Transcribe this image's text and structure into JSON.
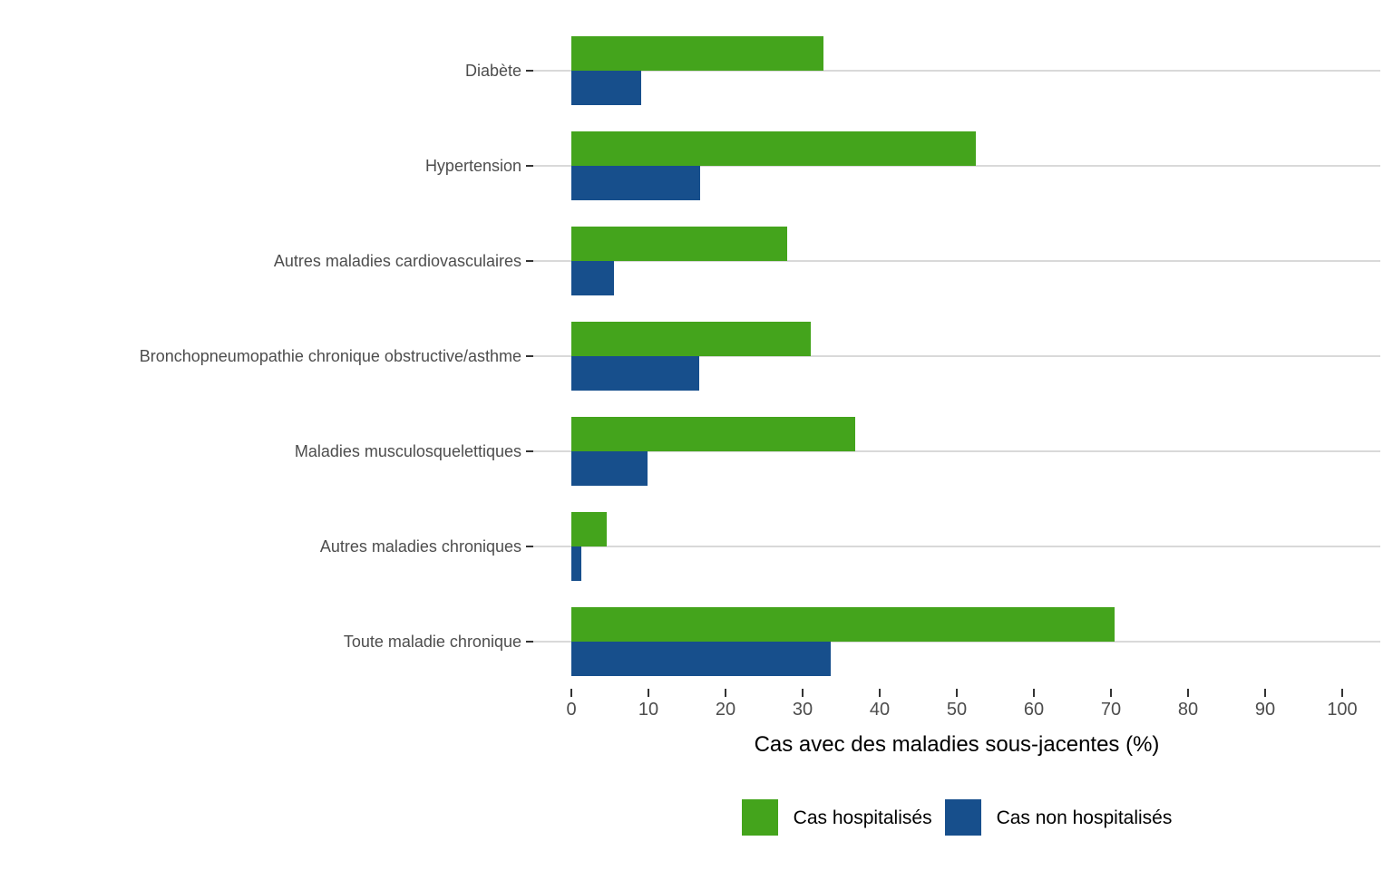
{
  "chart_data": {
    "type": "bar",
    "orientation": "horizontal",
    "title": "",
    "xlabel": "Cas avec des maladies sous-jacentes (%)",
    "ylabel": "",
    "xlim": [
      0,
      100
    ],
    "x_ticks": [
      0,
      10,
      20,
      30,
      40,
      50,
      60,
      70,
      80,
      90,
      100
    ],
    "grid": "horizontal-major-only",
    "legend_position": "bottom-center",
    "categories": [
      "Diabète",
      "Hypertension",
      "Autres maladies cardiovasculaires",
      "Bronchopneumopathie chronique obstructive/asthme",
      "Maladies musculosquelettiques",
      "Autres maladies chroniques",
      "Toute maladie chronique"
    ],
    "series": [
      {
        "name": "Cas hospitalisés",
        "color": "#44a41c",
        "values": [
          32.7,
          52.5,
          28.0,
          31.0,
          36.8,
          4.6,
          70.5
        ]
      },
      {
        "name": "Cas non hospitalisés",
        "color": "#174f8c",
        "values": [
          9.1,
          16.7,
          5.5,
          16.6,
          9.9,
          1.3,
          33.6
        ]
      }
    ]
  },
  "colors": {
    "hospitalized_green": "#44a41c",
    "non_hospitalized_blue": "#174f8c",
    "gridline_gray": "#d9d9d9",
    "axis_text_gray": "#4d4d4d",
    "tick_mark_gray": "#333333",
    "background": "#ffffff"
  }
}
